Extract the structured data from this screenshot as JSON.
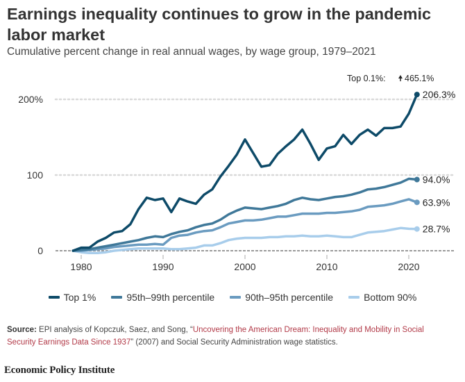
{
  "title": "Earnings inequality continues to grow in the pandemic labor market",
  "subtitle": "Cumulative percent change in real annual wages, by wage group, 1979–2021",
  "source": {
    "label": "Source:",
    "text_before": " EPI analysis of Kopczuk, Saez, and Song, “",
    "link_text": "Uncovering the American Dream: Inequality and Mobility in Social Security Earnings Data Since 1937",
    "text_after": "” (2007) and Social Security Administration wage statistics."
  },
  "brand": "Economic Policy Institute",
  "chart_data": {
    "type": "line",
    "title": "Earnings inequality continues to grow in the pandemic labor market",
    "subtitle": "Cumulative percent change in real annual wages, by wage group, 1979–2021",
    "xlabel": "",
    "ylabel": "",
    "xlim": [
      1976,
      2026
    ],
    "ylim": [
      0,
      215
    ],
    "x_ticks": [
      1980,
      1990,
      2000,
      2010,
      2020
    ],
    "x_tick_labels": [
      "1980",
      "1990",
      "2000",
      "2010",
      "2020"
    ],
    "y_ticks": [
      0,
      100,
      200
    ],
    "y_tick_labels": [
      "0",
      "100",
      "200%"
    ],
    "grid": "horizontal dotted",
    "legend_position": "bottom",
    "annotation": {
      "label": "Top 0.1%:",
      "arrow": "up-arrow",
      "value": "465.1%"
    },
    "x": [
      1979,
      1980,
      1981,
      1982,
      1983,
      1984,
      1985,
      1986,
      1987,
      1988,
      1989,
      1990,
      1991,
      1992,
      1993,
      1994,
      1995,
      1996,
      1997,
      1998,
      1999,
      2000,
      2001,
      2002,
      2003,
      2004,
      2005,
      2006,
      2007,
      2008,
      2009,
      2010,
      2011,
      2012,
      2013,
      2014,
      2015,
      2016,
      2017,
      2018,
      2019,
      2020,
      2021
    ],
    "series": [
      {
        "name": "Top 1%",
        "color": "#0d4a68",
        "end_label": "206.3%",
        "values": [
          0,
          4,
          4,
          12,
          17,
          24,
          26,
          35,
          55,
          70,
          67,
          69,
          51,
          69,
          65,
          62,
          74,
          81,
          98,
          112,
          127,
          147,
          129,
          111,
          113,
          128,
          138,
          147,
          160,
          141,
          120,
          135,
          138,
          153,
          141,
          153,
          160,
          152,
          162,
          162,
          164,
          181,
          206.3
        ]
      },
      {
        "name": "95th–99th percentile",
        "color": "#3f7899",
        "end_label": "94.0%",
        "values": [
          0,
          1,
          2,
          4,
          6,
          8,
          10,
          12,
          14,
          17,
          19,
          18,
          22,
          25,
          27,
          31,
          34,
          36,
          41,
          48,
          53,
          57,
          56,
          55,
          57,
          59,
          62,
          67,
          70,
          68,
          67,
          69,
          71,
          72,
          74,
          77,
          81,
          82,
          84,
          87,
          90,
          95,
          94.0
        ]
      },
      {
        "name": "90th–95th percentile",
        "color": "#6a9bc0",
        "end_label": "63.9%",
        "values": [
          0,
          0,
          1,
          2,
          3,
          5,
          6,
          7,
          8,
          8,
          9,
          8,
          17,
          20,
          21,
          24,
          26,
          27,
          31,
          36,
          38,
          40,
          40,
          41,
          43,
          45,
          45,
          47,
          49,
          49,
          49,
          50,
          50,
          51,
          52,
          54,
          58,
          59,
          60,
          62,
          65,
          68,
          63.9
        ]
      },
      {
        "name": "Bottom 90%",
        "color": "#a8cdeb",
        "end_label": "28.7%",
        "values": [
          0,
          -2,
          -3,
          -3,
          -2,
          0,
          1,
          2,
          3,
          3,
          3,
          3,
          2,
          2,
          3,
          4,
          7,
          7,
          10,
          14,
          16,
          17,
          17,
          17,
          18,
          18,
          19,
          19,
          20,
          19,
          19,
          20,
          19,
          18,
          18,
          21,
          24,
          25,
          26,
          28,
          30,
          29,
          28.7
        ]
      }
    ]
  }
}
